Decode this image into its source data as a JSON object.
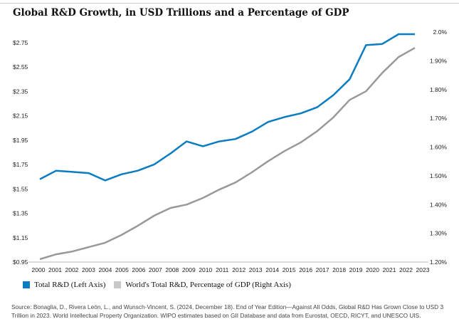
{
  "title": "Global R&D Growth, in USD Trillions and a Percentage of GDP",
  "chart_data": {
    "type": "line",
    "title": "Global R&D Growth, in USD Trillions and a Percentage of GDP",
    "x": [
      2000,
      2001,
      2002,
      2003,
      2004,
      2005,
      2006,
      2007,
      2008,
      2009,
      2010,
      2011,
      2012,
      2013,
      2014,
      2015,
      2016,
      2017,
      2018,
      2019,
      2020,
      2021,
      2022,
      2023
    ],
    "x_tick_labels": [
      "2000",
      "2001",
      "2002",
      "2003",
      "2004",
      "2005",
      "2006",
      "2007",
      "2008",
      "2009",
      "2010",
      "2011",
      "2012",
      "2013",
      "2014",
      "2015",
      "2016",
      "2017",
      "2018",
      "2019",
      "2020",
      "2021",
      "2022",
      "2023"
    ],
    "left_axis": {
      "ylim": [
        0.95,
        2.85
      ],
      "tick_labels": [
        "$2.75",
        "$2.55",
        "$2.35",
        "$2.15",
        "$1.95",
        "$1.75",
        "$1.55",
        "$1.35",
        "$1.15",
        "$0.95"
      ],
      "ticks": [
        2.75,
        2.55,
        2.35,
        2.15,
        1.95,
        1.75,
        1.55,
        1.35,
        1.15,
        0.95
      ]
    },
    "right_axis": {
      "ylim": [
        1.2,
        2.0
      ],
      "tick_labels": [
        "2.0%",
        "1.90%",
        "1.80%",
        "1.70%",
        "1.60%",
        "1.50%",
        "1.40%",
        "1.30%",
        "1.20%"
      ],
      "ticks": [
        2.0,
        1.9,
        1.8,
        1.7,
        1.6,
        1.5,
        1.4,
        1.3,
        1.2
      ]
    },
    "grid": false,
    "legend_placement": "bottom-left",
    "series": [
      {
        "name": "Total R&D (Left Axis)",
        "axis": "left",
        "color": "#0a7cc1",
        "values": [
          1.63,
          1.7,
          1.69,
          1.68,
          1.62,
          1.67,
          1.7,
          1.75,
          1.84,
          1.94,
          1.9,
          1.94,
          1.96,
          2.02,
          2.1,
          2.14,
          2.17,
          2.22,
          2.32,
          2.45,
          2.73,
          2.74,
          2.82,
          2.82
        ]
      },
      {
        "name": "World's Total R&D, Percentage of GDP (Right Axis)",
        "axis": "right",
        "color": "#999999",
        "values": [
          1.21,
          1.227,
          1.237,
          1.252,
          1.267,
          1.294,
          1.326,
          1.361,
          1.388,
          1.4,
          1.423,
          1.452,
          1.477,
          1.512,
          1.551,
          1.586,
          1.616,
          1.655,
          1.703,
          1.764,
          1.794,
          1.858,
          1.913,
          1.945
        ]
      }
    ]
  },
  "legend": [
    {
      "label": "Total R&D (Left Axis)",
      "color": "#0a7cc1"
    },
    {
      "label": "World's Total R&D, Percentage of GDP (Right Axis)",
      "color": "#c8c8c8"
    }
  ],
  "source": "Source: Bonaglia, D., Rivera León, L., and Wunsch-Vincent, S. (2024, December 18). End of Year Edition—Against All Odds, Global R&D Has Grown Close to USD 3 Trillion in 2023. World Intellectual Property Organization. WIPO estimates based on GII Database and data from Eurostat, OECD, RICYT, and UNESCO UIS."
}
